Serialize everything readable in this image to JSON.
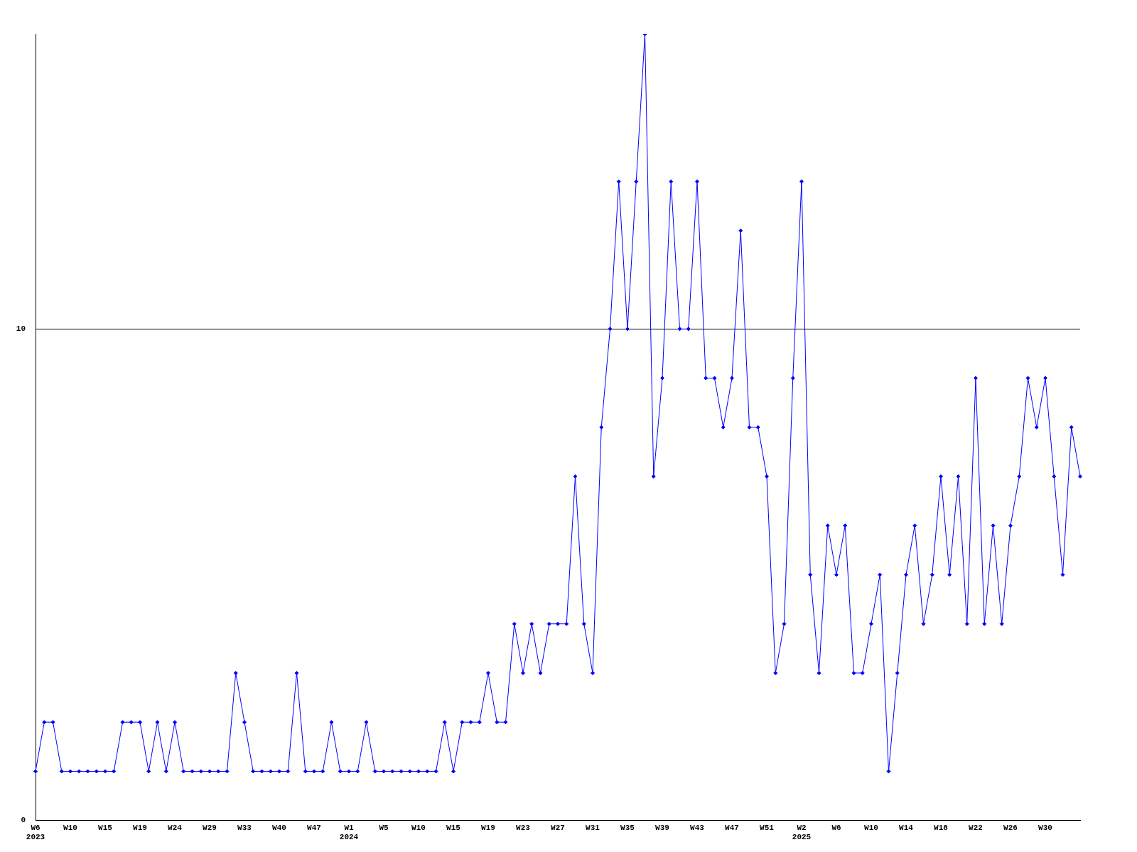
{
  "chart_data": {
    "type": "line",
    "categories": [
      "W6\n2023",
      null,
      null,
      null,
      "W10",
      null,
      null,
      null,
      "W15",
      null,
      null,
      null,
      "W19",
      null,
      null,
      null,
      "W24",
      null,
      null,
      null,
      "W29",
      null,
      null,
      null,
      "W33",
      null,
      null,
      null,
      "W40",
      null,
      null,
      null,
      "W47",
      null,
      null,
      null,
      "W1\n2024",
      null,
      null,
      null,
      "W5",
      null,
      null,
      null,
      "W10",
      null,
      null,
      null,
      "W15",
      null,
      null,
      null,
      "W19",
      null,
      null,
      null,
      "W23",
      null,
      null,
      null,
      "W27",
      null,
      null,
      null,
      "W31",
      null,
      null,
      null,
      "W35",
      null,
      null,
      null,
      "W39",
      null,
      null,
      null,
      "W43",
      null,
      null,
      null,
      "W47",
      null,
      null,
      null,
      "W51",
      null,
      null,
      null,
      "W2\n2025",
      null,
      null,
      null,
      "W6",
      null,
      null,
      null,
      "W10",
      null,
      null,
      null,
      "W14",
      null,
      null,
      null,
      "W18",
      null,
      null,
      null,
      "W22",
      null,
      null,
      null,
      "W26",
      null,
      null,
      null,
      "W30",
      null,
      null,
      null,
      null
    ],
    "series": [
      {
        "color": "#0000ff",
        "values": [
          1,
          2,
          2,
          1,
          1,
          1,
          1,
          1,
          1,
          1,
          2,
          2,
          2,
          1,
          2,
          1,
          2,
          1,
          1,
          1,
          1,
          1,
          1,
          3,
          2,
          1,
          1,
          1,
          1,
          1,
          3,
          1,
          1,
          1,
          2,
          1,
          1,
          1,
          2,
          1,
          1,
          1,
          1,
          1,
          1,
          1,
          1,
          2,
          1,
          2,
          2,
          2,
          3,
          2,
          2,
          4,
          3,
          4,
          3,
          4,
          4,
          4,
          7,
          4,
          3,
          8,
          10,
          13,
          10,
          13,
          16,
          7,
          9,
          13,
          10,
          10,
          13,
          9,
          9,
          8,
          9,
          12,
          8,
          8,
          7,
          3,
          4,
          9,
          13,
          5,
          3,
          6,
          5,
          6,
          3,
          3,
          4,
          5,
          1,
          3,
          5,
          6,
          4,
          5,
          7,
          5,
          7,
          4,
          9,
          4,
          6,
          4,
          6,
          7,
          9,
          8,
          9,
          7,
          5,
          8,
          7
        ]
      }
    ],
    "ylim": [
      0,
      16
    ],
    "yticks": [
      0,
      10
    ],
    "grid": "y",
    "marker": "diamond",
    "legend": false
  }
}
